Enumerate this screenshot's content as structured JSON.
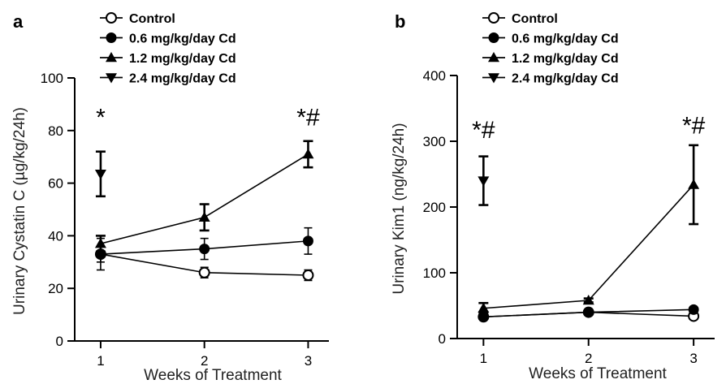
{
  "legend": [
    {
      "name": "Control",
      "marker": "open-circle"
    },
    {
      "name": "0.6 mg/kg/day Cd",
      "marker": "filled-circle"
    },
    {
      "name": "1.2 mg/kg/day Cd",
      "marker": "triangle-up"
    },
    {
      "name": "2.4 mg/kg/day Cd",
      "marker": "triangle-down"
    }
  ],
  "chart_data": [
    {
      "panel": "a",
      "type": "line",
      "xlabel": "Weeks of Treatment",
      "ylabel": "Urinary Cystatin C (µg/kg/24h)",
      "x": [
        1,
        2,
        3
      ],
      "xlim": [
        0.75,
        3.2
      ],
      "ylim": [
        0,
        100
      ],
      "yticks": [
        0,
        20,
        40,
        60,
        80,
        100
      ],
      "series": [
        {
          "name": "Control",
          "marker": "open-circle",
          "values": [
            33,
            26,
            25
          ],
          "errors": [
            6,
            2,
            2
          ]
        },
        {
          "name": "0.6 mg/kg/day Cd",
          "marker": "filled-circle",
          "values": [
            33,
            35,
            38
          ],
          "errors": [
            3,
            4,
            5
          ]
        },
        {
          "name": "1.2 mg/kg/day Cd",
          "marker": "triangle-up",
          "values": [
            37,
            47,
            71
          ],
          "errors": [
            3,
            5,
            5
          ]
        },
        {
          "name": "2.4 mg/kg/day Cd",
          "marker": "triangle-down",
          "values": [
            63.5,
            null,
            null
          ],
          "errors": [
            8.5,
            null,
            null
          ]
        }
      ],
      "annotations": [
        {
          "text": "*",
          "x": 1,
          "y": 82
        },
        {
          "text": "*#",
          "x": 3,
          "y": 82
        }
      ]
    },
    {
      "panel": "b",
      "type": "line",
      "xlabel": "Weeks of Treatment",
      "ylabel": "Urinary Kim1 (ng/kg/24h)",
      "x": [
        1,
        2,
        3
      ],
      "xlim": [
        0.75,
        3.2
      ],
      "ylim": [
        0,
        400
      ],
      "yticks": [
        0,
        100,
        200,
        300,
        400
      ],
      "series": [
        {
          "name": "Control",
          "marker": "open-circle",
          "values": [
            33,
            40,
            34
          ],
          "errors": [
            4,
            3,
            3
          ]
        },
        {
          "name": "0.6 mg/kg/day Cd",
          "marker": "filled-circle",
          "values": [
            33,
            40,
            44
          ],
          "errors": [
            3,
            3,
            3
          ]
        },
        {
          "name": "1.2 mg/kg/day Cd",
          "marker": "triangle-up",
          "values": [
            46,
            58,
            234
          ],
          "errors": [
            8,
            3,
            60
          ]
        },
        {
          "name": "2.4 mg/kg/day Cd",
          "marker": "triangle-down",
          "values": [
            240,
            null,
            null
          ],
          "errors": [
            37,
            null,
            null
          ]
        }
      ],
      "annotations": [
        {
          "text": "*#",
          "x": 1,
          "y": 305
        },
        {
          "text": "*#",
          "x": 3,
          "y": 312
        }
      ]
    }
  ]
}
